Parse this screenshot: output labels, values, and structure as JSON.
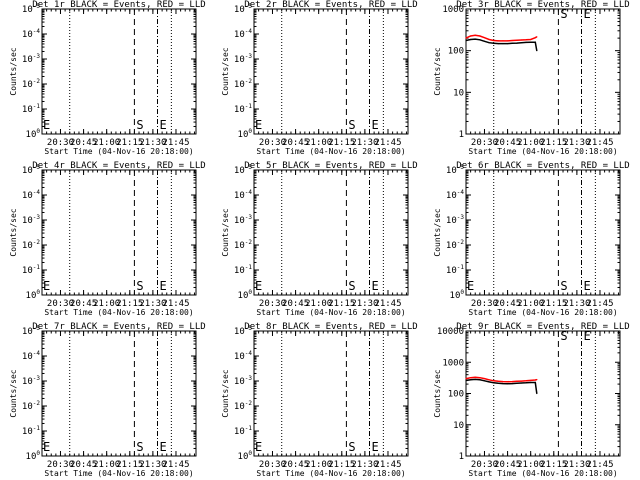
{
  "chart_data": [
    {
      "panel": "1r",
      "type": "line",
      "title": "Det 1r BLACK = Events, RED = LLD",
      "xlabel": "Start Time (04-Nov-16 20:18:00)",
      "ylabel": "Counts/sec",
      "yscale": "log",
      "ylim": [
        1,
        100000
      ],
      "y_ticklabels": [
        "10^0",
        "10^-1",
        "10^-2",
        "10^-3",
        "10^-4",
        "10^-5"
      ],
      "x_ticklabels": [
        "20:30",
        "20:45",
        "21:00",
        "21:15",
        "21:30",
        "21:45"
      ],
      "markers": [
        {
          "label": "S",
          "time": "21:18"
        },
        {
          "label": "E",
          "time": "21:33"
        }
      ],
      "series": []
    },
    {
      "panel": "2r",
      "type": "line",
      "title": "Det 2r BLACK = Events, RED = LLD",
      "xlabel": "Start Time (04-Nov-16 20:18:00)",
      "ylabel": "Counts/sec",
      "yscale": "log",
      "ylim": [
        1,
        100000
      ],
      "y_ticklabels": [
        "10^0",
        "10^-1",
        "10^-2",
        "10^-3",
        "10^-4",
        "10^-5"
      ],
      "x_ticklabels": [
        "20:30",
        "20:45",
        "21:00",
        "21:15",
        "21:30",
        "21:45"
      ],
      "markers": [
        {
          "label": "S",
          "time": "21:18"
        },
        {
          "label": "E",
          "time": "21:33"
        }
      ],
      "series": []
    },
    {
      "panel": "3r",
      "type": "line",
      "title": "Det 3r BLACK = Events, RED = LLD",
      "xlabel": "Start Time (04-Nov-16 20:18:00)",
      "ylabel": "Counts/sec",
      "yscale": "log",
      "ylim": [
        1,
        1000
      ],
      "y_ticklabels": [
        "1",
        "10",
        "100",
        "1000"
      ],
      "x_ticklabels": [
        "20:30",
        "20:45",
        "21:00",
        "21:15",
        "21:30",
        "21:45"
      ],
      "markers": [
        {
          "label": "S",
          "time": "21:18"
        },
        {
          "label": "E",
          "time": "21:33"
        }
      ],
      "series": [
        {
          "color": "#ff0000",
          "x": [
            "20:18",
            "20:21",
            "20:24",
            "20:27",
            "20:30",
            "20:33",
            "20:36",
            "20:39",
            "20:42",
            "20:45",
            "20:48",
            "20:51",
            "20:54",
            "20:57",
            "21:00",
            "21:03",
            "21:04"
          ],
          "y": [
            200,
            225,
            235,
            225,
            205,
            185,
            175,
            172,
            172,
            172,
            175,
            178,
            180,
            182,
            185,
            205,
            215
          ]
        },
        {
          "color": "#000000",
          "x": [
            "20:18",
            "20:21",
            "20:24",
            "20:27",
            "20:30",
            "20:33",
            "20:36",
            "20:39",
            "20:42",
            "20:45",
            "20:48",
            "20:51",
            "20:54",
            "20:57",
            "21:00",
            "21:03",
            "21:04"
          ],
          "y": [
            175,
            185,
            190,
            182,
            168,
            155,
            150,
            148,
            148,
            148,
            150,
            152,
            155,
            158,
            160,
            160,
            100
          ]
        }
      ]
    },
    {
      "panel": "4r",
      "type": "line",
      "title": "Det 4r BLACK = Events, RED = LLD",
      "xlabel": "Start Time (04-Nov-16 20:18:00)",
      "ylabel": "Counts/sec",
      "yscale": "log",
      "ylim": [
        1,
        100000
      ],
      "y_ticklabels": [
        "10^0",
        "10^-1",
        "10^-2",
        "10^-3",
        "10^-4",
        "10^-5"
      ],
      "x_ticklabels": [
        "20:30",
        "20:45",
        "21:00",
        "21:15",
        "21:30",
        "21:45"
      ],
      "markers": [
        {
          "label": "S",
          "time": "21:18"
        },
        {
          "label": "E",
          "time": "21:33"
        }
      ],
      "series": []
    },
    {
      "panel": "5r",
      "type": "line",
      "title": "Det 5r BLACK = Events, RED = LLD",
      "xlabel": "Start Time (04-Nov-16 20:18:00)",
      "ylabel": "Counts/sec",
      "yscale": "log",
      "ylim": [
        1,
        100000
      ],
      "y_ticklabels": [
        "10^0",
        "10^-1",
        "10^-2",
        "10^-3",
        "10^-4",
        "10^-5"
      ],
      "x_ticklabels": [
        "20:30",
        "20:45",
        "21:00",
        "21:15",
        "21:30",
        "21:45"
      ],
      "markers": [
        {
          "label": "S",
          "time": "21:18"
        },
        {
          "label": "E",
          "time": "21:33"
        }
      ],
      "series": []
    },
    {
      "panel": "6r",
      "type": "line",
      "title": "Det 6r BLACK = Events, RED = LLD",
      "xlabel": "Start Time (04-Nov-16 20:18:00)",
      "ylabel": "Counts/sec",
      "yscale": "log",
      "ylim": [
        1,
        100000
      ],
      "y_ticklabels": [
        "10^0",
        "10^-1",
        "10^-2",
        "10^-3",
        "10^-4",
        "10^-5"
      ],
      "x_ticklabels": [
        "20:30",
        "20:45",
        "21:00",
        "21:15",
        "21:30",
        "21:45"
      ],
      "markers": [
        {
          "label": "S",
          "time": "21:18"
        },
        {
          "label": "E",
          "time": "21:33"
        }
      ],
      "series": []
    },
    {
      "panel": "7r",
      "type": "line",
      "title": "Det 7r BLACK = Events, RED = LLD",
      "xlabel": "Start Time (04-Nov-16 20:18:00)",
      "ylabel": "Counts/sec",
      "yscale": "log",
      "ylim": [
        1,
        100000
      ],
      "y_ticklabels": [
        "10^0",
        "10^-1",
        "10^-2",
        "10^-3",
        "10^-4",
        "10^-5"
      ],
      "x_ticklabels": [
        "20:30",
        "20:45",
        "21:00",
        "21:15",
        "21:30",
        "21:45"
      ],
      "markers": [
        {
          "label": "S",
          "time": "21:18"
        },
        {
          "label": "E",
          "time": "21:33"
        }
      ],
      "series": []
    },
    {
      "panel": "8r",
      "type": "line",
      "title": "Det 8r BLACK = Events, RED = LLD",
      "xlabel": "Start Time (04-Nov-16 20:18:00)",
      "ylabel": "Counts/sec",
      "yscale": "log",
      "ylim": [
        1,
        100000
      ],
      "y_ticklabels": [
        "10^0",
        "10^-1",
        "10^-2",
        "10^-3",
        "10^-4",
        "10^-5"
      ],
      "x_ticklabels": [
        "20:30",
        "20:45",
        "21:00",
        "21:15",
        "21:30",
        "21:45"
      ],
      "markers": [
        {
          "label": "S",
          "time": "21:18"
        },
        {
          "label": "E",
          "time": "21:33"
        }
      ],
      "series": []
    },
    {
      "panel": "9r",
      "type": "line",
      "title": "Det 9r BLACK = Events, RED = LLD",
      "xlabel": "Start Time (04-Nov-16 20:18:00)",
      "ylabel": "Counts/sec",
      "yscale": "log",
      "ylim": [
        1,
        10000
      ],
      "y_ticklabels": [
        "1",
        "10",
        "100",
        "1000",
        "10000"
      ],
      "x_ticklabels": [
        "20:30",
        "20:45",
        "21:00",
        "21:15",
        "21:30",
        "21:45"
      ],
      "markers": [
        {
          "label": "S",
          "time": "21:18"
        },
        {
          "label": "E",
          "time": "21:33"
        }
      ],
      "series": [
        {
          "color": "#ff0000",
          "x": [
            "20:18",
            "20:21",
            "20:24",
            "20:27",
            "20:30",
            "20:33",
            "20:36",
            "20:39",
            "20:42",
            "20:45",
            "20:48",
            "20:51",
            "20:54",
            "20:57",
            "21:00",
            "21:03",
            "21:04"
          ],
          "y": [
            300,
            320,
            330,
            320,
            300,
            275,
            255,
            245,
            240,
            238,
            240,
            245,
            250,
            255,
            262,
            270,
            278
          ]
        },
        {
          "color": "#000000",
          "x": [
            "20:18",
            "20:21",
            "20:24",
            "20:27",
            "20:30",
            "20:33",
            "20:36",
            "20:39",
            "20:42",
            "20:45",
            "20:48",
            "20:51",
            "20:54",
            "20:57",
            "21:00",
            "21:03",
            "21:04"
          ],
          "y": [
            260,
            275,
            282,
            275,
            255,
            235,
            220,
            212,
            208,
            206,
            208,
            212,
            216,
            220,
            225,
            225,
            100
          ]
        }
      ]
    }
  ]
}
